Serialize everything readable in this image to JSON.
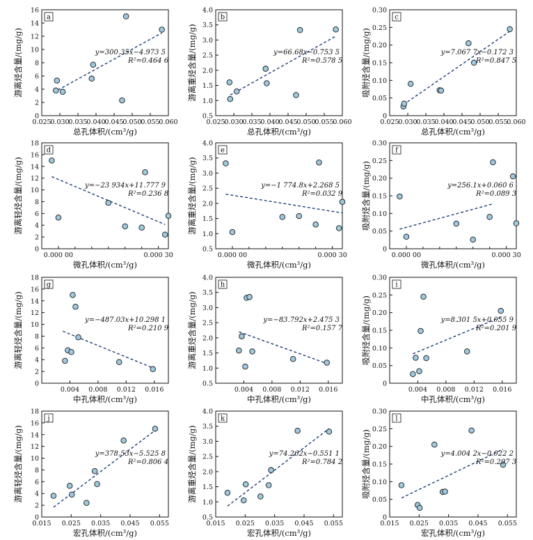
{
  "chart_data": [
    {
      "id": "a",
      "type": "scatter",
      "letter": "a",
      "xlabel": "总孔体积/(cm³/g)",
      "ylabel": "游离烃含量/(mg/g)",
      "xlim": [
        0.025,
        0.06
      ],
      "ylim": [
        0,
        16
      ],
      "xticks": [
        0.025,
        0.03,
        0.035,
        0.04,
        0.045,
        0.05,
        0.055,
        0.06
      ],
      "xtick_labels": [
        "0.025",
        "0.030",
        "0.035",
        "0.040",
        "0.045",
        "0.050",
        "0.055",
        "0.060"
      ],
      "yticks": [
        0,
        2,
        4,
        6,
        8,
        10,
        12,
        14,
        16
      ],
      "ytick_labels": [
        "0",
        "2",
        "4",
        "6",
        "8",
        "10",
        "12",
        "14",
        "16"
      ],
      "x": [
        0.0289,
        0.0292,
        0.0308,
        0.0388,
        0.0392,
        0.0472,
        0.0483,
        0.0582
      ],
      "y": [
        3.8,
        5.3,
        3.6,
        5.6,
        7.7,
        2.3,
        15.0,
        13.0
      ],
      "trend": {
        "slope": 300.35,
        "intercept": -4.9735,
        "x0": 0.0295,
        "x1": 0.0582
      },
      "equation": "y=300.35x−4.973 5",
      "r2": "R²=0.464 6"
    },
    {
      "id": "b",
      "type": "scatter",
      "letter": "b",
      "xlabel": "总孔体积/(cm³/g)",
      "ylabel": "游离重烃含量/(mg/g)",
      "xlim": [
        0.025,
        0.06
      ],
      "ylim": [
        0.5,
        4.0
      ],
      "xticks": [
        0.025,
        0.03,
        0.035,
        0.04,
        0.045,
        0.05,
        0.055,
        0.06
      ],
      "xtick_labels": [
        "0.025",
        "0.030",
        "0.035",
        "0.040",
        "0.045",
        "0.050",
        "0.055",
        "0.060"
      ],
      "yticks": [
        0.5,
        1.0,
        1.5,
        2.0,
        2.5,
        3.0,
        3.5,
        4.0
      ],
      "ytick_labels": [
        "0.5",
        "1.0",
        "1.5",
        "2.0",
        "2.5",
        "3.0",
        "3.5",
        "4.0"
      ],
      "x": [
        0.0288,
        0.029,
        0.0308,
        0.0388,
        0.0391,
        0.0472,
        0.0483,
        0.0582
      ],
      "y": [
        1.6,
        1.05,
        1.3,
        2.05,
        1.57,
        1.18,
        3.33,
        3.35
      ],
      "trend": {
        "slope": 66.68,
        "intercept": -0.7535,
        "x0": 0.029,
        "x1": 0.0582
      },
      "equation": "y=66.68x−0.753 5",
      "r2": "R²=0.578 5"
    },
    {
      "id": "c",
      "type": "scatter",
      "letter": "c",
      "xlabel": "总孔体积/(cm³/g)",
      "ylabel": "吸附烃含量/(mg/g)",
      "xlim": [
        0.025,
        0.06
      ],
      "ylim": [
        0,
        0.3
      ],
      "xticks": [
        0.025,
        0.03,
        0.035,
        0.04,
        0.045,
        0.05,
        0.055,
        0.06
      ],
      "xtick_labels": [
        "0.025",
        "0.030",
        "0.035",
        "0.040",
        "0.045",
        "0.050",
        "0.055",
        "0.060"
      ],
      "yticks": [
        0,
        0.05,
        0.1,
        0.15,
        0.2,
        0.25,
        0.3
      ],
      "ytick_labels": [
        "0",
        "0.05",
        "0.10",
        "0.15",
        "0.20",
        "0.25",
        "0.30"
      ],
      "x": [
        0.0288,
        0.029,
        0.0308,
        0.0388,
        0.0392,
        0.0468,
        0.0483,
        0.0582
      ],
      "y": [
        0.026,
        0.034,
        0.09,
        0.072,
        0.071,
        0.205,
        0.15,
        0.245
      ],
      "trend": {
        "slope": 7.0677,
        "intercept": -0.1723,
        "x0": 0.0288,
        "x1": 0.0582
      },
      "equation": "y=7.067 7x−0.172 3",
      "r2": "R²=0.847 5"
    },
    {
      "id": "d",
      "type": "scatter",
      "letter": "d",
      "xlabel": "微孔体积/(cm³/g)",
      "ylabel": "游离轻烃含量/(mg/g)",
      "xlim": [
        -5e-05,
        0.00033
      ],
      "ylim": [
        0,
        18
      ],
      "xticks": [
        0,
        0.0003
      ],
      "xtick_labels": [
        "0.000 00",
        "0.000 30"
      ],
      "xminor": [
        -5e-05,
        5e-05,
        0.0001,
        0.00015,
        0.0002,
        0.00025,
        0.00033
      ],
      "yticks": [
        0,
        2,
        4,
        6,
        8,
        10,
        12,
        14,
        16,
        18
      ],
      "ytick_labels": [
        "0",
        "2",
        "4",
        "6",
        "8",
        "10",
        "12",
        "14",
        "16",
        "18"
      ],
      "x": [
        -2e-05,
        0.0,
        0.00015,
        0.0002,
        0.00025,
        0.00026,
        0.00032,
        0.00033
      ],
      "y": [
        15.0,
        5.3,
        7.8,
        3.8,
        3.6,
        13.0,
        2.4,
        5.6
      ],
      "trend": {
        "slope": -23934,
        "intercept": 11.7779,
        "x0": -2e-05,
        "x1": 0.00032
      },
      "equation": "y=−23 934x+11.777 9",
      "r2": "R²=0.236 8"
    },
    {
      "id": "e",
      "type": "scatter",
      "letter": "e",
      "xlabel": "微孔体积/(cm³/g)",
      "ylabel": "游离重烃含量/(mg/g)",
      "xlim": [
        -5e-05,
        0.00033
      ],
      "ylim": [
        0.5,
        4.0
      ],
      "xticks": [
        0,
        0.0003
      ],
      "xtick_labels": [
        "0.000 00",
        "0.000 30"
      ],
      "xminor": [
        -5e-05,
        5e-05,
        0.0001,
        0.00015,
        0.0002,
        0.00025,
        0.00033
      ],
      "yticks": [
        0.5,
        1.0,
        1.5,
        2.0,
        2.5,
        3.0,
        3.5,
        4.0
      ],
      "ytick_labels": [
        "0.5",
        "1.0",
        "1.5",
        "2.0",
        "2.5",
        "3.0",
        "3.5",
        "4.0"
      ],
      "x": [
        -2e-05,
        0.0,
        0.00015,
        0.0002,
        0.00025,
        0.00026,
        0.00032,
        0.00033
      ],
      "y": [
        3.32,
        1.05,
        1.55,
        1.58,
        1.3,
        3.35,
        1.18,
        2.05
      ],
      "trend": {
        "slope": -1774.8,
        "intercept": 2.2685,
        "x0": -2e-05,
        "x1": 0.00033
      },
      "equation": "y=−1 774.8x+2.268 5",
      "r2": "R²=0.032 9"
    },
    {
      "id": "f",
      "type": "scatter",
      "letter": "f",
      "xlabel": "微孔体积/(cm³/g)",
      "ylabel": "吸附烃含量/(mg/g)",
      "xlim": [
        -5e-05,
        0.00033
      ],
      "ylim": [
        0,
        0.3
      ],
      "xticks": [
        0,
        0.0003
      ],
      "xtick_labels": [
        "0.000 00",
        "0.000 30"
      ],
      "xminor": [
        -5e-05,
        5e-05,
        0.0001,
        0.00015,
        0.0002,
        0.00025,
        0.00033
      ],
      "yticks": [
        0,
        0.05,
        0.1,
        0.15,
        0.2,
        0.25,
        0.3
      ],
      "ytick_labels": [
        "0",
        "0.05",
        "0.10",
        "0.15",
        "0.20",
        "0.25",
        "0.30"
      ],
      "x": [
        -2e-05,
        0.0,
        0.00015,
        0.0002,
        0.00025,
        0.00026,
        0.00032,
        0.00033
      ],
      "y": [
        0.148,
        0.034,
        0.071,
        0.026,
        0.09,
        0.245,
        0.205,
        0.072
      ],
      "trend": {
        "slope": 256.1,
        "intercept": 0.0606,
        "x0": -2e-05,
        "x1": 0.00026
      },
      "equation": "y=256.1x+0.060 6",
      "r2": "R²=0.089 3"
    },
    {
      "id": "g",
      "type": "scatter",
      "letter": "g",
      "xlabel": "中孔体积/(cm³/g)",
      "ylabel": "游离轻烃含量/(mg/g)",
      "xlim": [
        0,
        0.018
      ],
      "ylim": [
        0,
        18
      ],
      "xticks": [
        0.004,
        0.008,
        0.012,
        0.016
      ],
      "xtick_labels": [
        "0.004",
        "0.008",
        "0.012",
        "0.016"
      ],
      "yticks": [
        0,
        2,
        4,
        6,
        8,
        10,
        12,
        14,
        16,
        18
      ],
      "ytick_labels": [
        "0",
        "2",
        "4",
        "6",
        "8",
        "10",
        "12",
        "14",
        "16",
        "18"
      ],
      "x": [
        0.0033,
        0.0037,
        0.0042,
        0.0044,
        0.0048,
        0.0052,
        0.011,
        0.0158
      ],
      "y": [
        3.8,
        5.6,
        5.3,
        15.0,
        13.0,
        7.8,
        3.6,
        2.4
      ],
      "trend": {
        "slope": -487.03,
        "intercept": 10.2981,
        "x0": 0.003,
        "x1": 0.0158
      },
      "equation": "y=−487.03x+10.298 1",
      "r2": "R²=0.210 9"
    },
    {
      "id": "h",
      "type": "scatter",
      "letter": "h",
      "xlabel": "中孔体积/(cm³/g)",
      "ylabel": "游离重烃含量/(mg/g)",
      "xlim": [
        0,
        0.018
      ],
      "ylim": [
        0.5,
        4.0
      ],
      "xticks": [
        0.004,
        0.008,
        0.012,
        0.016
      ],
      "xtick_labels": [
        "0.004",
        "0.008",
        "0.012",
        "0.016"
      ],
      "yticks": [
        0.5,
        1.0,
        1.5,
        2.0,
        2.5,
        3.0,
        3.5,
        4.0
      ],
      "ytick_labels": [
        "0.5",
        "1.0",
        "1.5",
        "2.0",
        "2.5",
        "3.0",
        "3.5",
        "4.0"
      ],
      "x": [
        0.0033,
        0.0037,
        0.0042,
        0.0044,
        0.0048,
        0.0052,
        0.011,
        0.0158
      ],
      "y": [
        1.58,
        2.05,
        1.05,
        3.32,
        3.35,
        1.55,
        1.3,
        1.18
      ],
      "trend": {
        "slope": -83.792,
        "intercept": 2.4753,
        "x0": 0.0033,
        "x1": 0.0158
      },
      "equation": "y=−83.792x+2.475 3",
      "r2": "R²=0.157 7"
    },
    {
      "id": "i",
      "type": "scatter",
      "letter": "i",
      "xlabel": "中孔体积/(cm³/g)",
      "ylabel": "吸附烃含量/(mg/g)",
      "xlim": [
        0,
        0.018
      ],
      "ylim": [
        0,
        0.3
      ],
      "xticks": [
        0.004,
        0.008,
        0.012,
        0.016
      ],
      "xtick_labels": [
        "0.004",
        "0.008",
        "0.012",
        "0.016"
      ],
      "yticks": [
        0,
        0.05,
        0.1,
        0.15,
        0.2,
        0.25,
        0.3
      ],
      "ytick_labels": [
        "0",
        "0.05",
        "0.10",
        "0.15",
        "0.20",
        "0.25",
        "0.30"
      ],
      "x": [
        0.0033,
        0.0037,
        0.0042,
        0.0044,
        0.0048,
        0.0052,
        0.011,
        0.0158
      ],
      "y": [
        0.026,
        0.072,
        0.034,
        0.148,
        0.245,
        0.071,
        0.09,
        0.205
      ],
      "trend": {
        "slope": 8.3015,
        "intercept": 0.0559,
        "x0": 0.0033,
        "x1": 0.0158
      },
      "equation": "y=8.301 5x+0.055 9",
      "r2": "R²=0.201 9"
    },
    {
      "id": "j",
      "type": "scatter",
      "letter": "j",
      "xlabel": "宏孔体积/(cm³/g)",
      "ylabel": "游离轻烃含量/(mg/g)",
      "xlim": [
        0.015,
        0.058
      ],
      "ylim": [
        0,
        18
      ],
      "xticks": [
        0.015,
        0.025,
        0.035,
        0.045,
        0.055
      ],
      "xtick_labels": [
        "0.015",
        "0.025",
        "0.035",
        "0.045",
        "0.055"
      ],
      "yticks": [
        0,
        2,
        4,
        6,
        8,
        10,
        12,
        14,
        16,
        18
      ],
      "ytick_labels": [
        "0",
        "2",
        "4",
        "6",
        "8",
        "10",
        "12",
        "14",
        "16",
        "18"
      ],
      "x": [
        0.019,
        0.0245,
        0.0252,
        0.0302,
        0.033,
        0.0338,
        0.0428,
        0.0535
      ],
      "y": [
        3.6,
        5.3,
        3.8,
        2.4,
        7.8,
        5.6,
        13.0,
        15.0
      ],
      "trend": {
        "slope": 378.53,
        "intercept": -5.5258,
        "x0": 0.019,
        "x1": 0.0535
      },
      "equation": "y=378.53x−5.525 8",
      "r2": "R²=0.806 4"
    },
    {
      "id": "k",
      "type": "scatter",
      "letter": "k",
      "xlabel": "宏孔体积/(cm³/g)",
      "ylabel": "游离重烃含量/(mg/g)",
      "xlim": [
        0.015,
        0.058
      ],
      "ylim": [
        0.5,
        4.0
      ],
      "xticks": [
        0.015,
        0.025,
        0.035,
        0.045,
        0.055
      ],
      "xtick_labels": [
        "0.015",
        "0.025",
        "0.035",
        "0.045",
        "0.055"
      ],
      "yticks": [
        0.5,
        1.0,
        1.5,
        2.0,
        2.5,
        3.0,
        3.5,
        4.0
      ],
      "ytick_labels": [
        "0.5",
        "1.0",
        "1.5",
        "2.0",
        "2.5",
        "3.0",
        "3.5",
        "4.0"
      ],
      "x": [
        0.019,
        0.0245,
        0.0252,
        0.0302,
        0.033,
        0.0338,
        0.0428,
        0.0535
      ],
      "y": [
        1.3,
        1.05,
        1.58,
        1.18,
        1.55,
        2.05,
        3.35,
        3.32
      ],
      "trend": {
        "slope": 74.262,
        "intercept": -0.5511,
        "x0": 0.019,
        "x1": 0.0535
      },
      "equation": "y=74.262x−0.551 1",
      "r2": "R²=0.784 2"
    },
    {
      "id": "l",
      "type": "scatter",
      "letter": "l",
      "xlabel": "宏孔体积/(cm³/g)",
      "ylabel": "吸附烃含量/(mg/g)",
      "xlim": [
        0.015,
        0.058
      ],
      "ylim": [
        0,
        0.3
      ],
      "xticks": [
        0.015,
        0.025,
        0.035,
        0.045,
        0.055
      ],
      "xtick_labels": [
        "0.015",
        "0.025",
        "0.035",
        "0.045",
        "0.055"
      ],
      "yticks": [
        0,
        0.05,
        0.1,
        0.15,
        0.2,
        0.25,
        0.3
      ],
      "ytick_labels": [
        "0",
        "0.05",
        "0.10",
        "0.15",
        "0.20",
        "0.25",
        "0.30"
      ],
      "x": [
        0.019,
        0.0245,
        0.0252,
        0.0302,
        0.033,
        0.0338,
        0.0428,
        0.0535
      ],
      "y": [
        0.09,
        0.034,
        0.026,
        0.205,
        0.071,
        0.072,
        0.245,
        0.148
      ],
      "trend": {
        "slope": 4.0042,
        "intercept": -0.0222,
        "x0": 0.019,
        "x1": 0.0535
      },
      "equation": "y=4.004 2x−0.022 2",
      "r2": "R²=0.297 3"
    }
  ],
  "colors": {
    "marker_fill": "#9ec9df",
    "marker_stroke": "#1a1a1a",
    "trend": "#1f3f7a",
    "axis": "#111111"
  }
}
